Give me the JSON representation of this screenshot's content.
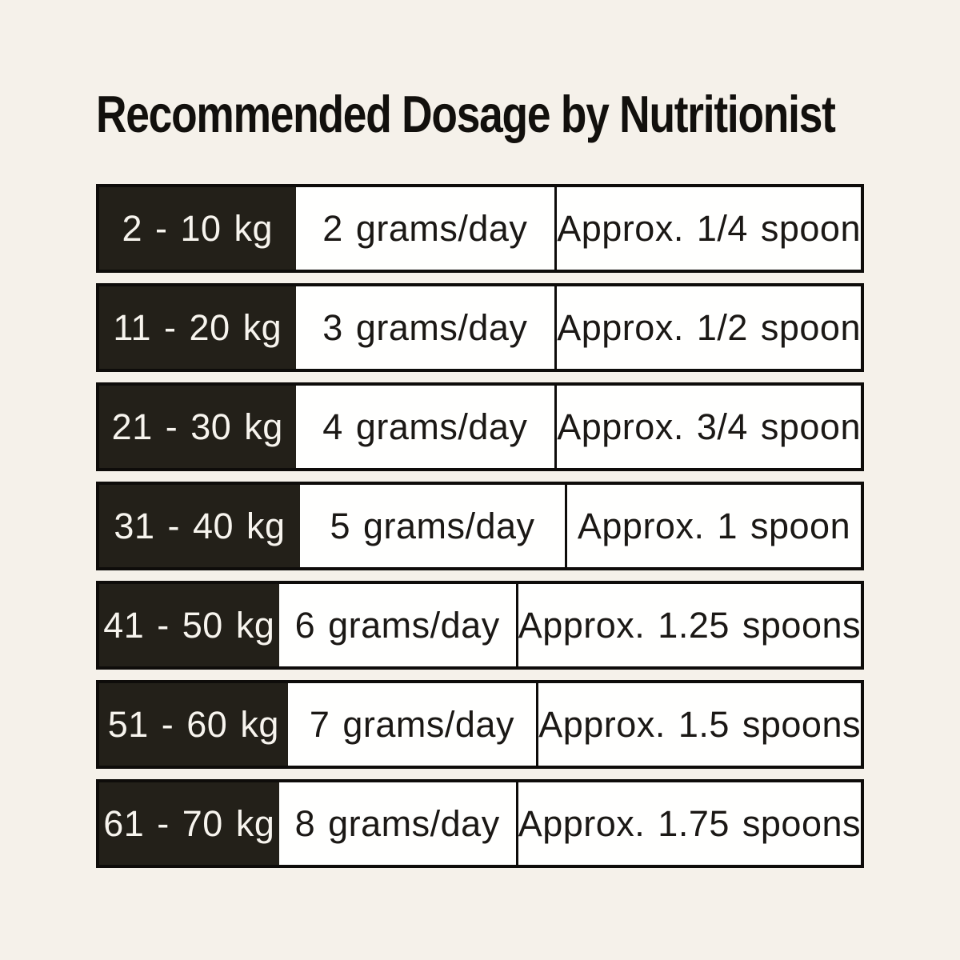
{
  "page": {
    "title": "Recommended Dosage by Nutritionist",
    "background_color": "#f5f1ea",
    "black_cell_color": "#232019",
    "border_color": "#0e0c0a",
    "white_cell_color": "#fffffe",
    "light_text_color": "#f7f4ee",
    "dark_text_color": "#1b1815"
  },
  "table": {
    "rows": [
      {
        "weight": "2 - 10 kg",
        "dosage": "2 grams/day",
        "spoons": "Approx. 1/4 spoon"
      },
      {
        "weight": "11 - 20 kg",
        "dosage": "3 grams/day",
        "spoons": "Approx. 1/2 spoon"
      },
      {
        "weight": "21 - 30 kg",
        "dosage": "4 grams/day",
        "spoons": "Approx. 3/4 spoon"
      },
      {
        "weight": "31 - 40 kg",
        "dosage": "5 grams/day",
        "spoons": "Approx. 1 spoon"
      },
      {
        "weight": "41 - 50 kg",
        "dosage": "6 grams/day",
        "spoons": "Approx. 1.25 spoons"
      },
      {
        "weight": "51 - 60 kg",
        "dosage": "7 grams/day",
        "spoons": "Approx. 1.5 spoons"
      },
      {
        "weight": "61 - 70 kg",
        "dosage": "8 grams/day",
        "spoons": "Approx. 1.75 spoons"
      }
    ]
  },
  "chart_data": {
    "type": "table",
    "title": "Recommended Dosage by Nutritionist",
    "columns": [
      "weight_range",
      "dosage_per_day",
      "spoon_equivalent"
    ],
    "rows": [
      [
        "2 - 10 kg",
        "2 grams/day",
        "Approx. 1/4 spoon"
      ],
      [
        "11 - 20 kg",
        "3 grams/day",
        "Approx. 1/2 spoon"
      ],
      [
        "21 - 30 kg",
        "4 grams/day",
        "Approx. 3/4 spoon"
      ],
      [
        "31 - 40 kg",
        "5 grams/day",
        "Approx. 1 spoon"
      ],
      [
        "41 - 50 kg",
        "6 grams/day",
        "Approx. 1.25 spoons"
      ],
      [
        "51 - 60 kg",
        "7 grams/day",
        "Approx. 1.5 spoons"
      ],
      [
        "61 - 70 kg",
        "8 grams/day",
        "Approx. 1.75 spoons"
      ]
    ],
    "layout": {
      "weight_column_style": "black background, light text",
      "grid": "separated row boxes with outer black borders",
      "header_row": false
    }
  }
}
